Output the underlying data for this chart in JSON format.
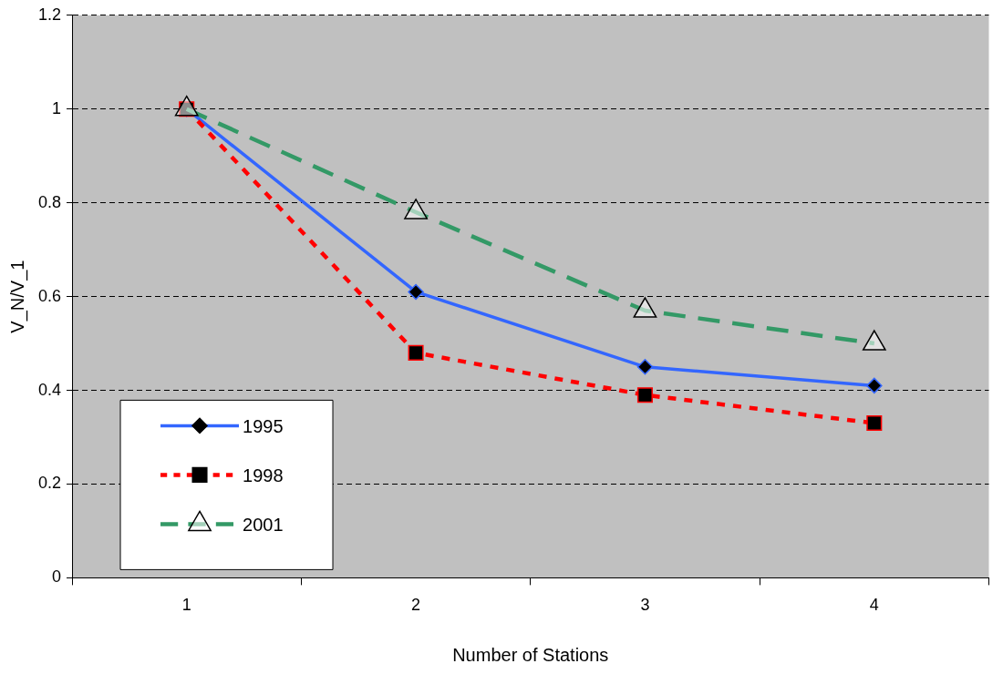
{
  "chart_data": {
    "type": "line",
    "xlabel": "Number of Stations",
    "ylabel": "V_N/V_1",
    "categories": [
      "1",
      "2",
      "3",
      "4"
    ],
    "ylim": [
      0,
      1.2
    ],
    "yticks": [
      0,
      0.2,
      0.4,
      0.6,
      0.8,
      1,
      1.2
    ],
    "grid": "y",
    "legend": "bottom left",
    "series": [
      {
        "name": "1995",
        "color": "#3366ff",
        "marker": "diamond",
        "line_style": "solid",
        "values": [
          1,
          0.61,
          0.45,
          0.41
        ]
      },
      {
        "name": "1998",
        "color": "#ff0000",
        "marker": "square",
        "line_style": "dotted",
        "values": [
          1,
          0.48,
          0.39,
          0.33
        ]
      },
      {
        "name": "2001",
        "color": "#339966",
        "marker": "triangle",
        "line_style": "dashed",
        "values": [
          1,
          0.78,
          0.57,
          0.5
        ]
      }
    ]
  }
}
